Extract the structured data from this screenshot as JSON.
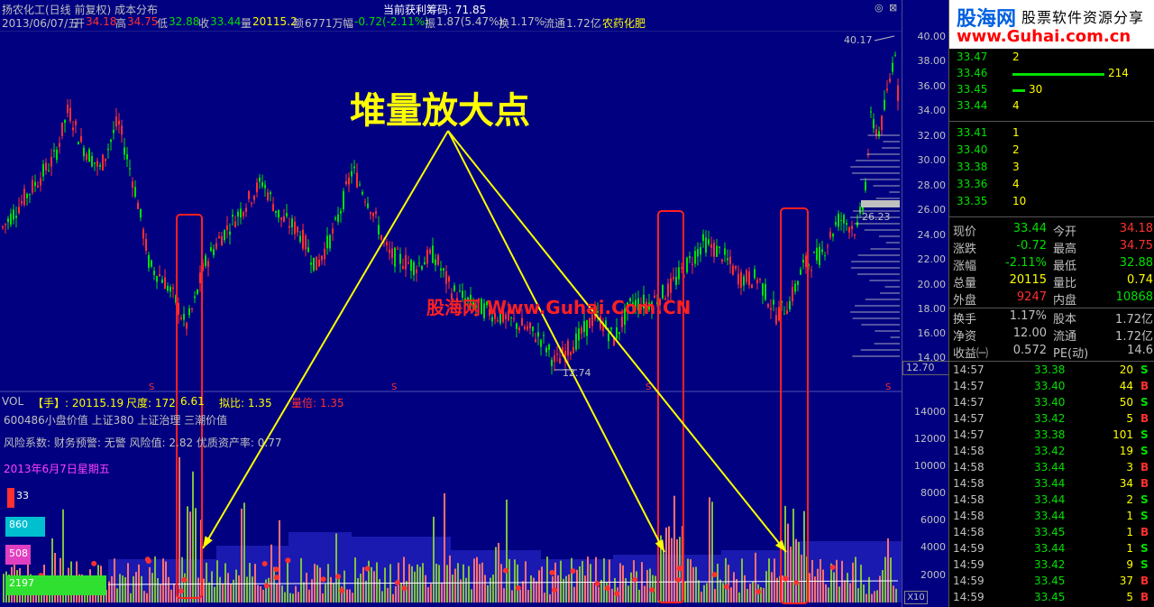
{
  "header": {
    "title": "扬农化工(日线 前复权) 成本分布",
    "profit_label": "当前获利筹码: 71.85",
    "date": "2013/06/07/五",
    "open_label": "开",
    "open": "34.18",
    "high_label": "高",
    "high": "34.75",
    "low_label": "低",
    "low": "32.88",
    "close_label": "收",
    "close": "33.44",
    "vol_label": "量",
    "vol": "20115.2",
    "amount_label": "额",
    "amount": "6771万",
    "chg_label": "幅",
    "chg": "-0.72(-2.11%)",
    "amp_label": "振",
    "amp": "1.87(5.47%)",
    "turn_label": "换",
    "turn": "1.17%",
    "float_label": "流通",
    "float": "1.72亿",
    "sector": "农药化肥"
  },
  "price_axis": [
    "40.00",
    "38.00",
    "36.00",
    "34.00",
    "32.00",
    "30.00",
    "28.00",
    "26.00",
    "24.00",
    "22.00",
    "20.00",
    "18.00",
    "16.00",
    "14.00"
  ],
  "price_current": "12.70",
  "price_labels": {
    "high": "40.17",
    "low": "12.74",
    "cost": "26.23"
  },
  "annotation": "堆量放大点",
  "watermark": "股海网 Www.Guhai.Com.CN",
  "volume": {
    "label": "VOL",
    "hand": "【手】: 20115.19",
    "scale_label": "尺度: 172",
    "scale_value": "6.61",
    "ratio_label": "拟比: 1.35",
    "mult_label": "量倍: 1.35",
    "info1": "600486小盘价值 上证380 上证治理 三潮价值",
    "info2": "风险系数: 财务预警: 无警   风险值: 2.82   优质资产率: 0.77",
    "date_line": "2013年6月7日星期五",
    "badges": [
      "33",
      "860",
      "508",
      "2197"
    ],
    "axis": [
      "14000",
      "12000",
      "10000",
      "8000",
      "6000",
      "4000",
      "2000"
    ],
    "zoom": "X10"
  },
  "brand": {
    "name": "股海网",
    "tagline": "股票软件资源分享",
    "url": "www.Guhai.com.cn"
  },
  "order_book": {
    "asks": [
      {
        "price": "33.47",
        "qty": "2"
      },
      {
        "price": "33.46",
        "qty": "214"
      },
      {
        "price": "33.45",
        "qty": "30"
      },
      {
        "price": "33.44",
        "qty": "4"
      }
    ],
    "bids": [
      {
        "price": "33.41",
        "qty": "1"
      },
      {
        "price": "33.40",
        "qty": "2"
      },
      {
        "price": "33.38",
        "qty": "3"
      },
      {
        "price": "33.36",
        "qty": "4"
      },
      {
        "price": "33.35",
        "qty": "10"
      }
    ]
  },
  "stats": [
    {
      "l1": "现价",
      "v1": "33.44",
      "l2": "今开",
      "v2": "34.18"
    },
    {
      "l1": "涨跌",
      "v1": "-0.72",
      "l2": "最高",
      "v2": "34.75"
    },
    {
      "l1": "涨幅",
      "v1": "-2.11%",
      "l2": "最低",
      "v2": "32.88"
    },
    {
      "l1": "总量",
      "v1": "20115",
      "l2": "量比",
      "v2": "0.74"
    },
    {
      "l1": "外盘",
      "v1": "9247",
      "l2": "内盘",
      "v2": "10868"
    },
    {
      "l1": "换手",
      "v1": "1.17%",
      "l2": "股本",
      "v2": "1.72亿"
    },
    {
      "l1": "净资",
      "v1": "12.00",
      "l2": "流通",
      "v2": "1.72亿"
    },
    {
      "l1": "收益㈠",
      "v1": "0.572",
      "l2": "PE(动)",
      "v2": "14.6"
    }
  ],
  "ticks": [
    {
      "time": "14:57",
      "price": "33.38",
      "vol": "20",
      "dir": "S"
    },
    {
      "time": "14:57",
      "price": "33.40",
      "vol": "44",
      "dir": "B"
    },
    {
      "time": "14:57",
      "price": "33.40",
      "vol": "50",
      "dir": "S"
    },
    {
      "time": "14:57",
      "price": "33.42",
      "vol": "5",
      "dir": "B"
    },
    {
      "time": "14:57",
      "price": "33.38",
      "vol": "101",
      "dir": "S"
    },
    {
      "time": "14:58",
      "price": "33.42",
      "vol": "19",
      "dir": "S"
    },
    {
      "time": "14:58",
      "price": "33.44",
      "vol": "3",
      "dir": "B"
    },
    {
      "time": "14:58",
      "price": "33.44",
      "vol": "34",
      "dir": "B"
    },
    {
      "time": "14:58",
      "price": "33.44",
      "vol": "2",
      "dir": "S"
    },
    {
      "time": "14:58",
      "price": "33.44",
      "vol": "1",
      "dir": "S"
    },
    {
      "time": "14:58",
      "price": "33.45",
      "vol": "1",
      "dir": "B"
    },
    {
      "time": "14:59",
      "price": "33.44",
      "vol": "1",
      "dir": "S"
    },
    {
      "time": "14:59",
      "price": "33.42",
      "vol": "9",
      "dir": "S"
    },
    {
      "time": "14:59",
      "price": "33.45",
      "vol": "37",
      "dir": "B"
    },
    {
      "time": "14:59",
      "price": "33.45",
      "vol": "5",
      "dir": "B"
    }
  ],
  "colors": {
    "up": "#ff3030",
    "down": "#00e000",
    "accent": "#ffff00",
    "bg": "#000080"
  }
}
